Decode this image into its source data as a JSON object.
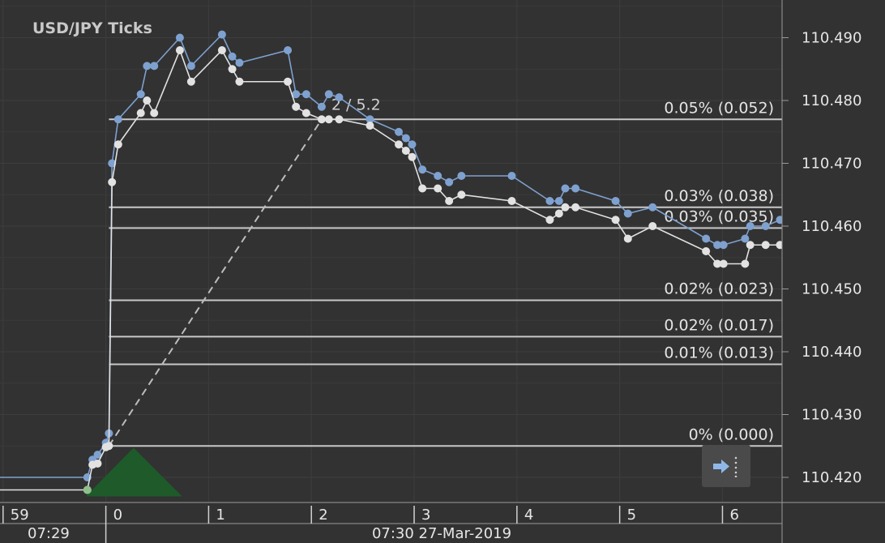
{
  "chart_data": {
    "type": "line",
    "title": "USD/JPY  Ticks",
    "ylim": [
      110.416,
      110.496
    ],
    "y_ticks": [
      {
        "value": 110.42,
        "label": "110.420"
      },
      {
        "value": 110.43,
        "label": "110.430"
      },
      {
        "value": 110.44,
        "label": "110.440"
      },
      {
        "value": 110.45,
        "label": "110.450"
      },
      {
        "value": 110.46,
        "label": "110.460"
      },
      {
        "value": 110.47,
        "label": "110.470"
      },
      {
        "value": 110.48,
        "label": "110.480"
      },
      {
        "value": 110.49,
        "label": "110.490"
      }
    ],
    "xlim": [
      -1.03,
      6.58
    ],
    "x_ticks": [
      {
        "value": -1,
        "label": "59"
      },
      {
        "value": 0,
        "label": "0"
      },
      {
        "value": 1,
        "label": "1"
      },
      {
        "value": 2,
        "label": "2"
      },
      {
        "value": 3,
        "label": "3"
      },
      {
        "value": 4,
        "label": "4"
      },
      {
        "value": 5,
        "label": "5"
      },
      {
        "value": 6,
        "label": "6"
      }
    ],
    "time_labels": [
      "07:29",
      "07:30 27-Mar-2019"
    ],
    "grid": true,
    "series": [
      {
        "color": "#7ea1d0",
        "points": [
          [
            -1.03,
            110.42
          ],
          [
            -0.18,
            110.42
          ],
          [
            -0.13,
            110.4228
          ],
          [
            -0.08,
            110.4236
          ],
          [
            0.0,
            110.4255
          ],
          [
            0.03,
            110.427
          ],
          [
            0.06,
            110.47
          ],
          [
            0.12,
            110.477
          ],
          [
            0.34,
            110.481
          ],
          [
            0.4,
            110.4855
          ],
          [
            0.47,
            110.4855
          ],
          [
            0.72,
            110.49
          ],
          [
            0.83,
            110.4855
          ],
          [
            1.13,
            110.4905
          ],
          [
            1.23,
            110.487
          ],
          [
            1.3,
            110.486
          ],
          [
            1.77,
            110.488
          ],
          [
            1.85,
            110.481
          ],
          [
            1.95,
            110.481
          ],
          [
            2.1,
            110.479
          ],
          [
            2.17,
            110.481
          ],
          [
            2.27,
            110.4805
          ],
          [
            2.57,
            110.477
          ],
          [
            2.85,
            110.475
          ],
          [
            2.92,
            110.474
          ],
          [
            2.98,
            110.473
          ],
          [
            3.08,
            110.469
          ],
          [
            3.23,
            110.468
          ],
          [
            3.34,
            110.467
          ],
          [
            3.46,
            110.468
          ],
          [
            3.95,
            110.468
          ],
          [
            4.32,
            110.464
          ],
          [
            4.41,
            110.464
          ],
          [
            4.47,
            110.466
          ],
          [
            4.57,
            110.466
          ],
          [
            4.96,
            110.464
          ],
          [
            5.08,
            110.462
          ],
          [
            5.32,
            110.463
          ],
          [
            5.84,
            110.458
          ],
          [
            5.95,
            110.457
          ],
          [
            6.01,
            110.457
          ],
          [
            6.22,
            110.458
          ],
          [
            6.27,
            110.46
          ],
          [
            6.42,
            110.46
          ],
          [
            6.56,
            110.461
          ],
          [
            6.65,
            110.461
          ],
          [
            6.76,
            110.463
          ]
        ]
      },
      {
        "color": "#e2e2e2",
        "points": [
          [
            -1.03,
            110.418
          ],
          [
            -0.18,
            110.418
          ],
          [
            -0.13,
            110.422
          ],
          [
            -0.08,
            110.4222
          ],
          [
            0.0,
            110.4248
          ],
          [
            0.03,
            110.425
          ],
          [
            0.06,
            110.467
          ],
          [
            0.12,
            110.473
          ],
          [
            0.34,
            110.478
          ],
          [
            0.4,
            110.48
          ],
          [
            0.47,
            110.478
          ],
          [
            0.72,
            110.488
          ],
          [
            0.83,
            110.483
          ],
          [
            1.13,
            110.488
          ],
          [
            1.23,
            110.485
          ],
          [
            1.3,
            110.483
          ],
          [
            1.77,
            110.483
          ],
          [
            1.85,
            110.479
          ],
          [
            1.95,
            110.478
          ],
          [
            2.1,
            110.477
          ],
          [
            2.17,
            110.477
          ],
          [
            2.27,
            110.477
          ],
          [
            2.57,
            110.476
          ],
          [
            2.85,
            110.473
          ],
          [
            2.92,
            110.472
          ],
          [
            2.98,
            110.471
          ],
          [
            3.08,
            110.466
          ],
          [
            3.23,
            110.466
          ],
          [
            3.34,
            110.464
          ],
          [
            3.46,
            110.465
          ],
          [
            3.95,
            110.464
          ],
          [
            4.32,
            110.461
          ],
          [
            4.41,
            110.462
          ],
          [
            4.47,
            110.463
          ],
          [
            4.57,
            110.463
          ],
          [
            4.96,
            110.461
          ],
          [
            5.08,
            110.458
          ],
          [
            5.32,
            110.46
          ],
          [
            5.84,
            110.456
          ],
          [
            5.95,
            110.454
          ],
          [
            6.01,
            110.454
          ],
          [
            6.22,
            110.454
          ],
          [
            6.27,
            110.457
          ],
          [
            6.42,
            110.457
          ],
          [
            6.56,
            110.457
          ],
          [
            6.65,
            110.458
          ],
          [
            6.76,
            110.459
          ]
        ]
      }
    ],
    "fib_levels": [
      {
        "value": 110.477,
        "label": "0.05% (0.052)"
      },
      {
        "value": 110.463,
        "label": "0.03% (0.038)"
      },
      {
        "value": 110.4597,
        "label": "0.03% (0.035)"
      },
      {
        "value": 110.4482,
        "label": "0.02% (0.023)"
      },
      {
        "value": 110.4424,
        "label": "0.02% (0.017)"
      },
      {
        "value": 110.438,
        "label": "0.01% (0.013)"
      },
      {
        "value": 110.425,
        "label": "0% (0.000)"
      }
    ],
    "fib_start_x": 0.03,
    "measure_line": {
      "from": [
        0.03,
        110.425
      ],
      "to": [
        2.1,
        110.477
      ],
      "label": "2 / 5.2"
    },
    "buy_marker": {
      "x": -0.18,
      "y": 110.418,
      "color": "#1e5a2a"
    },
    "colors": {
      "background": "#323232",
      "grid": "#3e3e3e",
      "fib": "#c8c8c8",
      "axis": "#9a9a9a"
    }
  },
  "ui": {
    "scroll_button_icon": "scroll-to-latest-icon"
  }
}
